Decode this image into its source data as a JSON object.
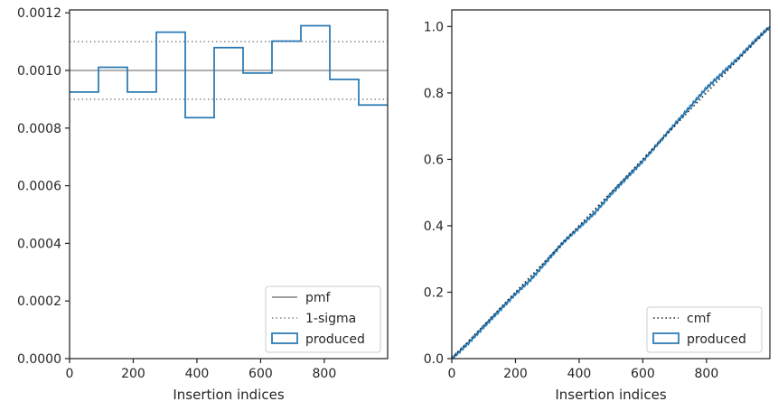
{
  "colors": {
    "produced": "#2a7ab4",
    "pmf": "#7f7f7f",
    "sigma": "#7f7f7f",
    "cmf": "#1a1a1a",
    "axes": "#262626"
  },
  "chart_data": [
    {
      "type": "histogram",
      "xlabel": "Insertion indices",
      "ylabel": "",
      "xlim": [
        0,
        999
      ],
      "ylim": [
        0,
        0.00121
      ],
      "xticks": [
        0,
        200,
        400,
        600,
        800
      ],
      "xtick_labels": [
        "0",
        "200",
        "400",
        "600",
        "800"
      ],
      "yticks": [
        0,
        0.0002,
        0.0004,
        0.0006,
        0.0008,
        0.001,
        0.0012
      ],
      "ytick_labels": [
        "0.0000",
        "0.0002",
        "0.0004",
        "0.0006",
        "0.0008",
        "0.0010",
        "0.0012"
      ],
      "pmf": 0.001,
      "sigma_upper": 0.0011,
      "sigma_lower": 0.0009,
      "bin_edges": [
        0,
        90.8,
        181.6,
        272.5,
        363.3,
        454.1,
        544.9,
        635.7,
        726.5,
        817.4,
        908.2,
        999
      ],
      "bin_values": [
        0.000925,
        0.001011,
        0.000925,
        0.001133,
        0.000836,
        0.001079,
        0.000991,
        0.001102,
        0.001155,
        0.000969,
        0.00088
      ],
      "legend": {
        "position": "lower-right",
        "entries": [
          {
            "label": "pmf",
            "kind": "line"
          },
          {
            "label": "1-sigma",
            "kind": "dotted"
          },
          {
            "label": "produced",
            "kind": "patch"
          }
        ]
      }
    },
    {
      "type": "line",
      "xlabel": "Insertion indices",
      "ylabel": "",
      "xlim": [
        0,
        999
      ],
      "ylim": [
        0,
        1.05
      ],
      "xticks": [
        0,
        200,
        400,
        600,
        800
      ],
      "xtick_labels": [
        "0",
        "200",
        "400",
        "600",
        "800"
      ],
      "yticks": [
        0,
        0.2,
        0.4,
        0.6,
        0.8,
        1.0
      ],
      "ytick_labels": [
        "0.0",
        "0.2",
        "0.4",
        "0.6",
        "0.8",
        "1.0"
      ],
      "cmf": {
        "x": [
          0,
          999
        ],
        "y": [
          0,
          1.0
        ]
      },
      "produced": {
        "x": [
          0,
          50,
          100,
          150,
          200,
          250,
          300,
          350,
          400,
          450,
          500,
          550,
          600,
          650,
          700,
          750,
          800,
          850,
          900,
          950,
          999
        ],
        "y": [
          0,
          0.045,
          0.095,
          0.145,
          0.195,
          0.24,
          0.295,
          0.35,
          0.395,
          0.44,
          0.495,
          0.545,
          0.595,
          0.65,
          0.705,
          0.76,
          0.815,
          0.86,
          0.905,
          0.955,
          1.0
        ]
      },
      "legend": {
        "position": "lower-right",
        "entries": [
          {
            "label": "cmf",
            "kind": "dotted"
          },
          {
            "label": "produced",
            "kind": "patch"
          }
        ]
      }
    }
  ]
}
